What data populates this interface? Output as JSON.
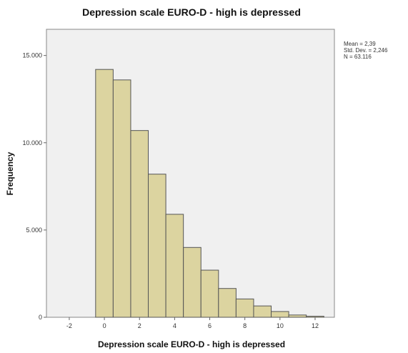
{
  "chart_data": {
    "type": "bar",
    "title": "Depression scale EURO-D - high is depressed",
    "xlabel": "Depression scale EURO-D - high is depressed",
    "ylabel": "Frequency",
    "xlim": [
      -3.3,
      13.1
    ],
    "ylim": [
      0,
      16500
    ],
    "x_ticks": [
      -2,
      0,
      2,
      4,
      6,
      8,
      10,
      12
    ],
    "x_tick_labels": [
      "-2",
      "0",
      "2",
      "4",
      "6",
      "8",
      "10",
      "12"
    ],
    "y_ticks": [
      0,
      5000,
      10000,
      15000
    ],
    "y_tick_labels": [
      "0",
      "5.000",
      "10.000",
      "15.000"
    ],
    "bin_width": 1,
    "bins": [
      0,
      1,
      2,
      3,
      4,
      5,
      6,
      7,
      8,
      9,
      10,
      11,
      12
    ],
    "values": [
      14200,
      13600,
      10700,
      8200,
      5900,
      4000,
      2700,
      1650,
      1050,
      650,
      330,
      130,
      60
    ],
    "bar_color": "#dcd4a0",
    "bar_stroke": "#555555",
    "plot_background": "#f0f0f0",
    "grid": false,
    "stats": {
      "mean": "Mean = 2,39",
      "std_dev": "Std. Dev. = 2,246",
      "n": "N = 63.116"
    }
  }
}
